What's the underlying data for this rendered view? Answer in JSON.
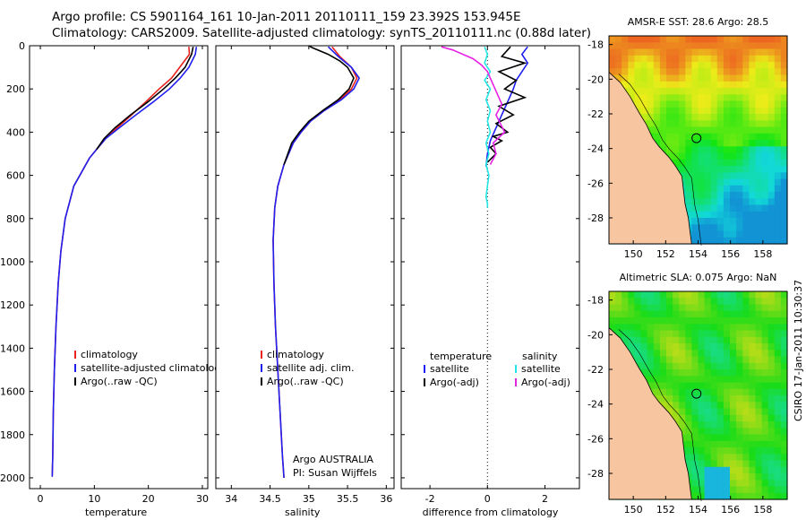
{
  "header": {
    "title_line1": "Argo profile: CS 5901164_161 10-Jan-2011 20110111_159 23.392S 153.945E",
    "title_line2": "Climatology: CARS2009. Satellite-adjusted climatology: synTS_20110111.nc (0.88d later)"
  },
  "stamp": "CSIRO 17-Jan-2011 10:30:37",
  "colors": {
    "climatology": "#e8231e",
    "satellite": "#1f1ff0",
    "argo": "#000000",
    "sal_satellite": "#22e6e6",
    "sal_argo": "#e622e6",
    "land": "#f7c59f"
  },
  "chart_data": [
    {
      "type": "line",
      "id": "temperature",
      "xlabel": "temperature",
      "ylabel": "",
      "xlim": [
        -2,
        31
      ],
      "ylim": [
        2050,
        0
      ],
      "xticks": [
        "0",
        "10",
        "20",
        "30"
      ],
      "yticks": [
        "0",
        "200",
        "400",
        "600",
        "800",
        "1000",
        "1200",
        "1400",
        "1600",
        "1800",
        "2000"
      ],
      "legend": [
        "climatology",
        "satellite-adjusted climatology",
        "Argo(..raw -QC)"
      ],
      "series": [
        {
          "name": "climatology",
          "color": "red",
          "x": [
            27.5,
            27.6,
            25.8,
            24.3,
            22.0,
            19.5,
            16.9,
            14.2,
            12.1,
            10.4,
            9.1,
            6.2,
            4.6,
            3.8,
            3.3,
            2.9,
            2.6,
            2.4,
            2.3,
            2.2
          ],
          "y": [
            5,
            40,
            100,
            150,
            200,
            260,
            320,
            380,
            430,
            480,
            520,
            650,
            800,
            950,
            1100,
            1300,
            1500,
            1700,
            1900,
            1995
          ]
        },
        {
          "name": "satellite-adjusted climatology",
          "color": "blue",
          "x": [
            28.9,
            28.7,
            27.5,
            25.9,
            23.9,
            20.9,
            17.7,
            14.6,
            12.1,
            10.4,
            9.1,
            6.2,
            4.6,
            3.8,
            3.3,
            2.9,
            2.6,
            2.4,
            2.3,
            2.2
          ],
          "y": [
            5,
            40,
            100,
            150,
            200,
            260,
            320,
            380,
            430,
            480,
            520,
            650,
            800,
            950,
            1100,
            1300,
            1500,
            1700,
            1900,
            1995
          ]
        },
        {
          "name": "Argo(..raw -QC)",
          "color": "black",
          "x": [
            28.3,
            28.0,
            26.8,
            25.0,
            22.8,
            19.9,
            16.7,
            13.8,
            11.8,
            10.4
          ],
          "y": [
            5,
            40,
            100,
            150,
            200,
            260,
            320,
            380,
            430,
            480
          ]
        }
      ],
      "note": ""
    },
    {
      "type": "line",
      "id": "salinity",
      "xlabel": "salinity",
      "xlim": [
        33.8,
        36.1
      ],
      "ylim": [
        2050,
        0
      ],
      "xticks": [
        "34",
        "34.5",
        "35",
        "35.5",
        "36"
      ],
      "legend": [
        "climatology",
        "satellite adj. clim.",
        "Argo(..raw -QC)"
      ],
      "series": [
        {
          "name": "climatology",
          "color": "red",
          "x": [
            35.3,
            35.4,
            35.55,
            35.62,
            35.55,
            35.4,
            35.2,
            35.02,
            34.9,
            34.8,
            34.68,
            34.6,
            34.56,
            34.54,
            34.55,
            34.57,
            34.6,
            34.63,
            34.66,
            34.68
          ],
          "y": [
            5,
            50,
            100,
            150,
            200,
            250,
            300,
            350,
            400,
            450,
            550,
            650,
            750,
            900,
            1100,
            1300,
            1500,
            1700,
            1900,
            2000
          ]
        },
        {
          "name": "satellite adj. clim.",
          "color": "blue",
          "x": [
            35.25,
            35.38,
            35.55,
            35.65,
            35.58,
            35.42,
            35.2,
            35.02,
            34.9,
            34.8,
            34.68,
            34.6,
            34.56,
            34.54,
            34.55,
            34.57,
            34.6,
            34.63,
            34.66,
            34.68
          ],
          "y": [
            5,
            50,
            100,
            150,
            200,
            250,
            300,
            350,
            400,
            450,
            550,
            650,
            750,
            900,
            1100,
            1300,
            1500,
            1700,
            1900,
            2000
          ]
        },
        {
          "name": "Argo(..raw -QC)",
          "color": "black",
          "x": [
            35.0,
            35.05,
            35.25,
            35.4,
            35.5,
            35.58,
            35.52,
            35.38,
            35.18,
            35.0,
            34.88,
            34.78,
            34.68
          ],
          "y": [
            0,
            10,
            40,
            70,
            100,
            150,
            200,
            250,
            300,
            350,
            400,
            450,
            550
          ]
        }
      ],
      "note": "Argo AUSTRALIA",
      "note2": "PI: Susan Wijffels"
    },
    {
      "type": "line",
      "id": "difference",
      "xlabel": "difference from climatology",
      "xlim": [
        -3,
        3.2
      ],
      "ylim": [
        2050,
        0
      ],
      "xticks": [
        "-2",
        "0",
        "2"
      ],
      "legend_left_title": "temperature",
      "legend_right_title": "salinity",
      "legend_left": [
        "satellite",
        "Argo(-adj)"
      ],
      "legend_right": [
        "satellite",
        "Argo(-adj)"
      ],
      "series": [
        {
          "name": "temperature satellite",
          "color": "blue",
          "x": [
            1.4,
            1.2,
            1.4,
            1.2,
            1.0,
            0.9,
            0.7,
            0.5,
            0.3,
            0.1,
            0.0,
            -0.05
          ],
          "y": [
            5,
            40,
            80,
            120,
            160,
            200,
            260,
            320,
            380,
            440,
            500,
            560
          ]
        },
        {
          "name": "temperature Argo(-adj)",
          "color": "black",
          "x": [
            0.8,
            0.5,
            1.3,
            0.4,
            1.0,
            0.6,
            1.3,
            0.4,
            0.9,
            0.3,
            0.7,
            0.2,
            0.5,
            0.1,
            0.3,
            0.0
          ],
          "y": [
            5,
            50,
            80,
            120,
            160,
            200,
            240,
            280,
            320,
            360,
            400,
            420,
            440,
            470,
            500,
            540
          ]
        },
        {
          "name": "salinity satellite",
          "color": "cyan",
          "x": [
            -0.1,
            0.0,
            -0.1,
            0.1,
            -0.1,
            0.1,
            -0.05,
            0.1,
            0.0,
            0.1,
            -0.05,
            0.05,
            -0.05,
            0.05,
            0.0,
            -0.05,
            0.0,
            0.0
          ],
          "y": [
            5,
            40,
            80,
            120,
            160,
            200,
            250,
            300,
            350,
            400,
            450,
            500,
            550,
            600,
            650,
            700,
            730,
            750
          ]
        },
        {
          "name": "salinity Argo(-adj)",
          "color": "magenta",
          "x": [
            -1.6,
            -1.2,
            -0.5,
            -0.2,
            0.0,
            0.2,
            0.5,
            0.3,
            0.6,
            0.2,
            0.3,
            0.1
          ],
          "y": [
            5,
            20,
            60,
            90,
            120,
            180,
            270,
            320,
            400,
            450,
            500,
            550
          ]
        }
      ]
    }
  ],
  "maps": [
    {
      "id": "sst",
      "title": "AMSR-E SST: 28.6 Argo: 28.5",
      "xticks": [
        "150",
        "152",
        "154",
        "156",
        "158"
      ],
      "yticks": [
        "-18",
        "-20",
        "-22",
        "-24",
        "-26",
        "-28"
      ],
      "xlim": [
        148.5,
        159.5
      ],
      "ylim": [
        -29.5,
        -17.5
      ],
      "argo_lon": 153.9,
      "argo_lat": -23.4
    },
    {
      "id": "sla",
      "title": "Altimetric SLA: 0.075 Argo: NaN",
      "xticks": [
        "150",
        "152",
        "154",
        "156",
        "158"
      ],
      "yticks": [
        "-18",
        "-20",
        "-22",
        "-24",
        "-26",
        "-28"
      ],
      "xlim": [
        148.5,
        159.5
      ],
      "ylim": [
        -29.5,
        -17.5
      ],
      "argo_lon": 153.9,
      "argo_lat": -23.4
    }
  ]
}
